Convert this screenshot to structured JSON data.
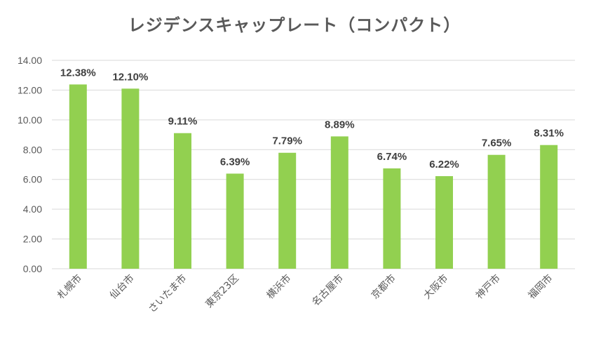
{
  "chart_data": {
    "type": "bar",
    "title": "レジデンスキャップレート（コンパクト）",
    "categories": [
      "札幌市",
      "仙台市",
      "さいたま市",
      "東京23区",
      "横浜市",
      "名古屋市",
      "京都市",
      "大阪市",
      "神戸市",
      "福岡市"
    ],
    "values": [
      12.38,
      12.1,
      9.11,
      6.39,
      7.79,
      8.89,
      6.74,
      6.22,
      7.65,
      8.31
    ],
    "data_labels": [
      "12.38%",
      "12.10%",
      "9.11%",
      "6.39%",
      "7.79%",
      "8.89%",
      "6.74%",
      "6.22%",
      "7.65%",
      "8.31%"
    ],
    "y_ticks": [
      "0.00",
      "2.00",
      "4.00",
      "6.00",
      "8.00",
      "10.00",
      "12.00",
      "14.00"
    ],
    "ylim": [
      0,
      14
    ],
    "xlabel": "",
    "ylabel": "",
    "grid": true,
    "legend": "none",
    "bar_color": "#92D050",
    "grid_color": "#D9D9D9"
  }
}
